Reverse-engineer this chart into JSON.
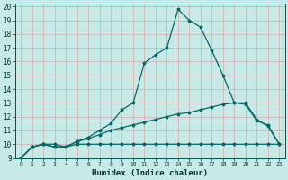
{
  "xlabel": "Humidex (Indice chaleur)",
  "background_color": "#c8eae6",
  "grid_color": "#d4a8a8",
  "line_color": "#006868",
  "xlim": [
    -0.5,
    23.5
  ],
  "ylim": [
    9,
    20.2
  ],
  "xticks": [
    0,
    1,
    2,
    3,
    4,
    5,
    6,
    7,
    8,
    9,
    10,
    11,
    12,
    13,
    14,
    15,
    16,
    17,
    18,
    19,
    20,
    21,
    22,
    23
  ],
  "yticks": [
    9,
    10,
    11,
    12,
    13,
    14,
    15,
    16,
    17,
    18,
    19,
    20
  ],
  "line1_x": [
    0,
    1,
    2,
    3,
    4,
    5,
    6,
    7,
    8,
    9,
    10,
    11,
    12,
    13,
    14,
    15,
    16,
    17,
    18,
    19,
    20,
    21,
    22,
    23
  ],
  "line1_y": [
    9,
    9.8,
    10,
    10,
    9.8,
    10.2,
    10.5,
    11.0,
    11.5,
    12.5,
    13,
    15.9,
    16.5,
    17.0,
    19.8,
    19.0,
    18.5,
    16.8,
    15.0,
    13.0,
    13.0,
    11.8,
    11.3,
    10.0
  ],
  "line2_x": [
    0,
    1,
    2,
    3,
    4,
    5,
    6,
    7,
    8,
    9,
    10,
    11,
    12,
    13,
    14,
    15,
    16,
    17,
    18,
    19,
    20,
    21,
    22,
    23
  ],
  "line2_y": [
    9,
    9.8,
    10,
    9.8,
    9.8,
    10.2,
    10.4,
    10.7,
    11.0,
    11.2,
    11.4,
    11.6,
    11.8,
    12.0,
    12.2,
    12.3,
    12.5,
    12.7,
    12.9,
    13.0,
    12.9,
    11.7,
    11.4,
    10.0
  ],
  "line3_x": [
    0,
    1,
    2,
    3,
    4,
    5,
    6,
    7,
    8,
    9,
    10,
    11,
    12,
    13,
    14,
    15,
    16,
    17,
    18,
    19,
    20,
    21,
    22,
    23
  ],
  "line3_y": [
    9,
    9.8,
    10,
    9.8,
    9.8,
    10.0,
    10.0,
    10.0,
    10.0,
    10.0,
    10.0,
    10.0,
    10.0,
    10.0,
    10.0,
    10.0,
    10.0,
    10.0,
    10.0,
    10.0,
    10.0,
    10.0,
    10.0,
    10.0
  ]
}
